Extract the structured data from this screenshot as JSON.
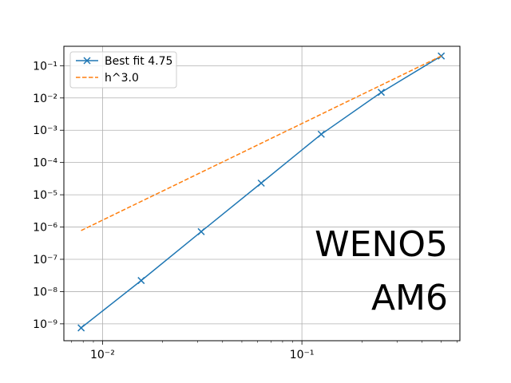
{
  "chart_data": {
    "type": "line",
    "xscale": "log",
    "yscale": "log",
    "xlim": [
      0.0064,
      0.62
    ],
    "ylim": [
      3e-10,
      0.4
    ],
    "grid": true,
    "legend_position": "top-left",
    "x_ticks": [
      {
        "value": 0.01,
        "label": "10⁻²"
      },
      {
        "value": 0.1,
        "label": "10⁻¹"
      }
    ],
    "y_ticks": [
      {
        "value": 1e-09,
        "label": "10⁻⁹"
      },
      {
        "value": 1e-08,
        "label": "10⁻⁸"
      },
      {
        "value": 1e-07,
        "label": "10⁻⁷"
      },
      {
        "value": 1e-06,
        "label": "10⁻⁶"
      },
      {
        "value": 1e-05,
        "label": "10⁻⁵"
      },
      {
        "value": 0.0001,
        "label": "10⁻⁴"
      },
      {
        "value": 0.001,
        "label": "10⁻³"
      },
      {
        "value": 0.01,
        "label": "10⁻²"
      },
      {
        "value": 0.1,
        "label": "10⁻¹"
      }
    ],
    "series": [
      {
        "name": "Best fit 4.75",
        "color": "#1f77b4",
        "linestyle": "solid",
        "marker": "x",
        "x": [
          0.0078125,
          0.015625,
          0.03125,
          0.0625,
          0.125,
          0.25,
          0.5
        ],
        "y": [
          7.5e-10,
          2.2e-08,
          7.2e-07,
          2.3e-05,
          0.00075,
          0.015,
          0.2
        ]
      },
      {
        "name": "h^3.0",
        "color": "#ff7f0e",
        "linestyle": "dashed",
        "marker": "none",
        "x": [
          0.0078125,
          0.5
        ],
        "y": [
          7.8e-07,
          0.2
        ]
      }
    ],
    "annotations": [
      "WENO5",
      "AM6"
    ]
  }
}
